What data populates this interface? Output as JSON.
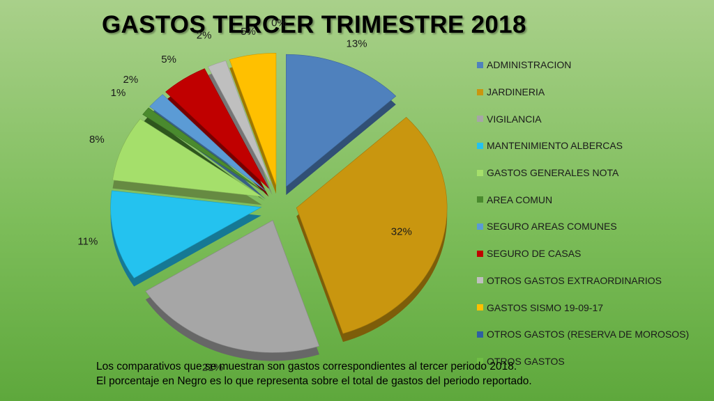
{
  "chart_data": {
    "type": "pie",
    "title": "GASTOS TERCER TRIMESTRE 2018",
    "style": "3d-exploded",
    "legend_position": "right",
    "slices": [
      {
        "label": "ADMINISTRACION",
        "value": 13,
        "value_label": "13%",
        "color": "#4f81bd"
      },
      {
        "label": "JARDINERIA",
        "value": 32,
        "value_label": "32%",
        "color": "#c9960f"
      },
      {
        "label": "VIGILANCIA",
        "value": 21,
        "value_label": "21%",
        "color": "#a6a6a6"
      },
      {
        "label": "MANTENIMIENTO ALBERCAS",
        "value": 11,
        "value_label": "11%",
        "color": "#24c2ef"
      },
      {
        "label": "GASTOS GENERALES NOTA",
        "value": 8,
        "value_label": "8%",
        "color": "#a5df6b"
      },
      {
        "label": "AREA COMUN",
        "value": 1,
        "value_label": "1%",
        "color": "#4a8a2e"
      },
      {
        "label": "SEGURO AREAS COMUNES",
        "value": 2,
        "value_label": "2%",
        "color": "#5b9bd5"
      },
      {
        "label": "SEGURO DE CASAS",
        "value": 5,
        "value_label": "5%",
        "color": "#c00000"
      },
      {
        "label": "OTROS GASTOS EXTRAORDINARIOS",
        "value": 2,
        "value_label": "2%",
        "color": "#bfbfbf"
      },
      {
        "label": "GASTOS SISMO 19-09-17",
        "value": 5,
        "value_label": "5%",
        "color": "#ffc000"
      },
      {
        "label": "OTROS GASTOS (RESERVA DE MOROSOS)",
        "value": 0,
        "value_label": "0%",
        "color": "#2e5fa3"
      },
      {
        "label": "OTROS GASTOS",
        "value": 0,
        "value_label": "",
        "color": "#6fbe44"
      }
    ]
  },
  "footnote": {
    "line1": "Los comparativos que se muestran son gastos correspondientes al tercer periodo 2018.",
    "line2": "El porcentaje en Negro es lo que representa sobre el total de gastos del periodo reportado."
  }
}
